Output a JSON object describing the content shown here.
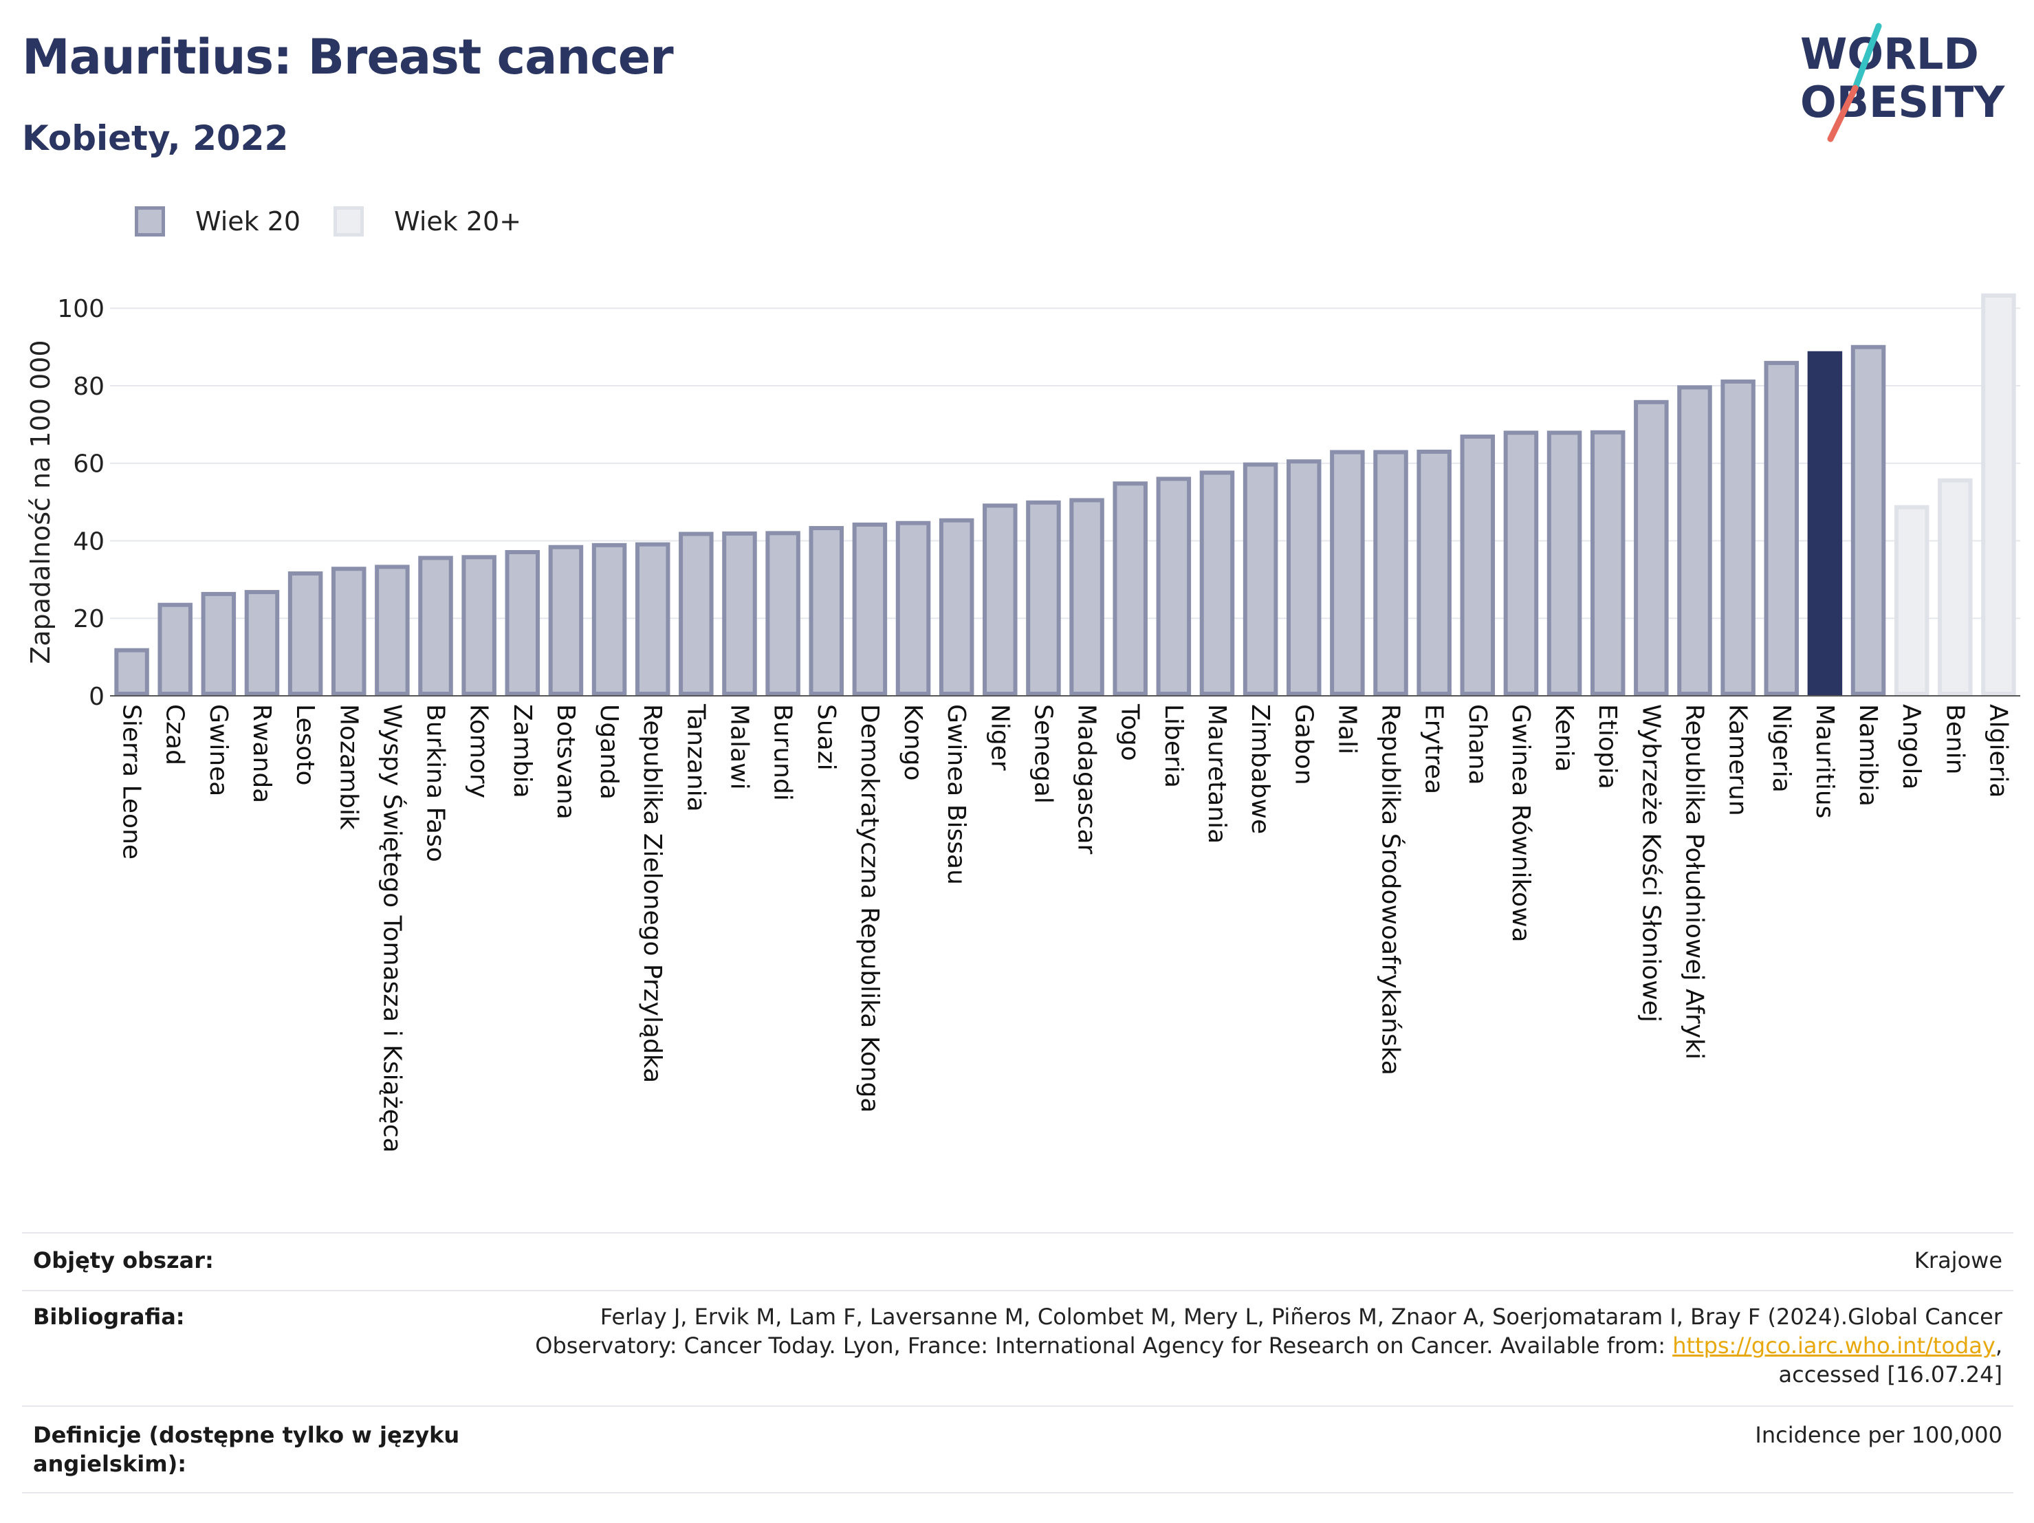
{
  "header": {
    "title": "Mauritius: Breast cancer",
    "subtitle": "Kobiety, 2022"
  },
  "logo": {
    "line1": "WORLD",
    "line2": "OBESITY",
    "colors": {
      "text": "#2b3561",
      "slash_teal": "#36c2c2",
      "slash_coral": "#e86a5c"
    }
  },
  "legend": {
    "items": [
      {
        "label": "Wiek 20",
        "color": "#bdc1d0",
        "border": "#8a90ab"
      },
      {
        "label": "Wiek 20+",
        "color": "#eceef2",
        "border": "#dfe2e8"
      }
    ]
  },
  "chart_data": {
    "type": "bar",
    "ylabel": "Zapadalność na 100 000",
    "ylim": [
      0,
      105
    ],
    "yticks": [
      0,
      20,
      40,
      60,
      80,
      100
    ],
    "grid": true,
    "categories": [
      "Sierra Leone",
      "Czad",
      "Gwinea",
      "Rwanda",
      "Lesoto",
      "Mozambik",
      "Wyspy Świętego Tomasza i Książęca",
      "Burkina Faso",
      "Komory",
      "Zambia",
      "Botsvana",
      "Uganda",
      "Republika Zielonego Przylądka",
      "Tanzania",
      "Malawi",
      "Burundi",
      "Suazi",
      "Demokratyczna Republika Konga",
      "Kongo",
      "Gwinea Bissau",
      "Niger",
      "Senegal",
      "Madagascar",
      "Togo",
      "Liberia",
      "Mauretania",
      "Zimbabwe",
      "Gabon",
      "Mali",
      "Republika Środowoafrykańska",
      "Erytrea",
      "Ghana",
      "Gwinea Równikowa",
      "Kenia",
      "Etiopia",
      "Wybrzeże Kości Słoniowej",
      "Republika Południowej Afryki",
      "Kamerun",
      "Nigeria",
      "Mauritius",
      "Namibia",
      "Angola",
      "Benin",
      "Algieria"
    ],
    "values": [
      12.3,
      24.0,
      26.8,
      27.3,
      32.1,
      33.3,
      33.8,
      36.1,
      36.3,
      37.6,
      38.9,
      39.4,
      39.6,
      42.3,
      42.4,
      42.5,
      43.8,
      44.7,
      45.1,
      45.8,
      49.6,
      50.4,
      51.0,
      55.3,
      56.5,
      58.1,
      60.2,
      61.0,
      63.4,
      63.4,
      63.5,
      67.4,
      68.4,
      68.4,
      68.5,
      76.3,
      80.1,
      81.6,
      86.4,
      88.9,
      90.5,
      49.2,
      56.1,
      103.8
    ],
    "groups": [
      "Wiek 20",
      "Wiek 20",
      "Wiek 20",
      "Wiek 20",
      "Wiek 20",
      "Wiek 20",
      "Wiek 20",
      "Wiek 20",
      "Wiek 20",
      "Wiek 20",
      "Wiek 20",
      "Wiek 20",
      "Wiek 20",
      "Wiek 20",
      "Wiek 20",
      "Wiek 20",
      "Wiek 20",
      "Wiek 20",
      "Wiek 20",
      "Wiek 20",
      "Wiek 20",
      "Wiek 20",
      "Wiek 20",
      "Wiek 20",
      "Wiek 20",
      "Wiek 20",
      "Wiek 20",
      "Wiek 20",
      "Wiek 20",
      "Wiek 20",
      "Wiek 20",
      "Wiek 20",
      "Wiek 20",
      "Wiek 20",
      "Wiek 20",
      "Wiek 20",
      "Wiek 20",
      "Wiek 20",
      "Wiek 20",
      "Wiek 20",
      "Wiek 20",
      "Wiek 20+",
      "Wiek 20+",
      "Wiek 20+"
    ],
    "highlight": "Mauritius",
    "colors": {
      "Wiek 20": "#bdc1d0",
      "Wiek 20 border": "#8a90ab",
      "Wiek 20+": "#eceef2",
      "Wiek 20+ border": "#dfe2e8",
      "highlight": "#2b3561"
    }
  },
  "meta": {
    "rows": [
      {
        "key": "Objęty obszar:",
        "value": "Krajowe"
      },
      {
        "key": "Bibliografia:",
        "value_line1": "Ferlay J, Ervik M, Lam F, Laversanne M, Colombet M, Mery L, Piñeros M, Znaor A, Soerjomataram I, Bray F (2024).Global Cancer",
        "value_line2_pre": "Observatory: Cancer Today. Lyon, France: International Agency for Research on Cancer. Available from: ",
        "value_link": "https://gco.iarc.who.int/today",
        "value_line2_post": ",",
        "value_line3": "accessed [16.07.24]"
      },
      {
        "key": "Definicje (dostępne tylko w języku angielskim):",
        "value": "Incidence per 100,000"
      }
    ]
  }
}
